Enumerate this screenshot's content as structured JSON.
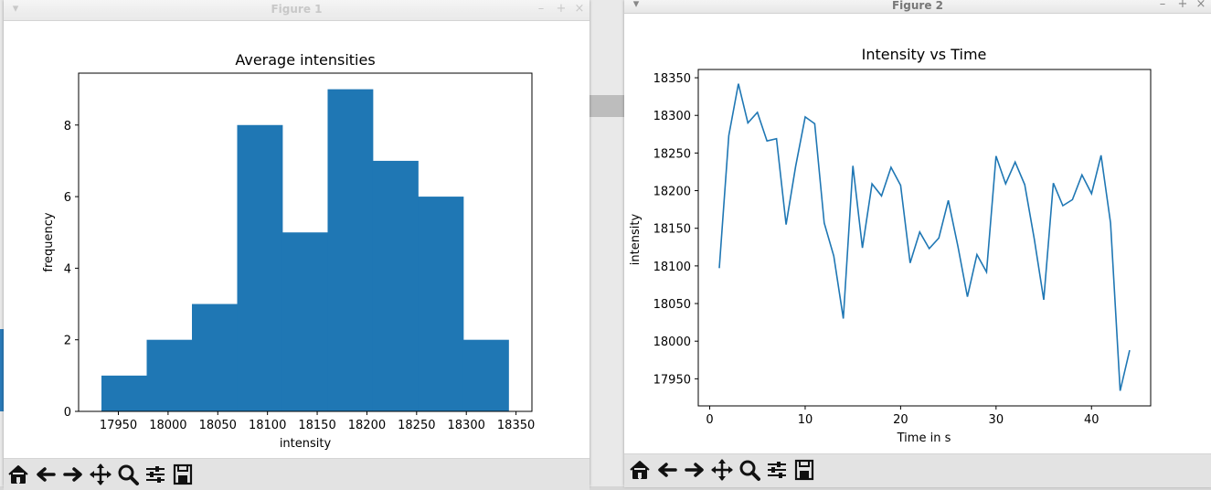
{
  "figure1": {
    "window_title": "Figure 1",
    "chart_data": {
      "type": "bar",
      "title": "Average intensities",
      "xlabel": "intensity",
      "ylabel": "frequency",
      "bin_edges": [
        17933,
        17978.5,
        18024,
        18069.5,
        18115,
        18160.5,
        18206,
        18251.5,
        18297,
        18342.5
      ],
      "values": [
        1,
        2,
        3,
        8,
        5,
        9,
        7,
        6,
        2
      ],
      "xlim": [
        17910,
        18366
      ],
      "ylim": [
        0,
        9.45
      ],
      "xticks": [
        17950,
        18000,
        18050,
        18100,
        18150,
        18200,
        18250,
        18300,
        18350
      ],
      "yticks": [
        0,
        2,
        4,
        6,
        8
      ],
      "color": "#1f77b4"
    }
  },
  "figure2": {
    "window_title": "Figure 2",
    "chart_data": {
      "type": "line",
      "title": "Intensity vs Time",
      "xlabel": "Time in s",
      "ylabel": "intensity",
      "x": [
        1,
        2,
        3,
        4,
        5,
        6,
        7,
        8,
        9,
        10,
        11,
        12,
        13,
        14,
        15,
        16,
        17,
        18,
        19,
        20,
        21,
        22,
        23,
        24,
        25,
        26,
        27,
        28,
        29,
        30,
        31,
        32,
        33,
        34,
        35,
        36,
        37,
        38,
        39,
        40,
        41,
        42,
        43,
        44
      ],
      "y": [
        18097,
        18273,
        18342,
        18290,
        18304,
        18266,
        18269,
        18155,
        18232,
        18298,
        18289,
        18157,
        18113,
        18030,
        18233,
        18124,
        18209,
        18193,
        18231,
        18207,
        18104,
        18145,
        18123,
        18137,
        18187,
        18126,
        18059,
        18115,
        18092,
        18246,
        18209,
        18238,
        18208,
        18136,
        18055,
        18210,
        18180,
        18188,
        18221,
        18196,
        18247,
        18157,
        17934,
        17988
      ],
      "xlim": [
        -1.2,
        46.2
      ],
      "ylim": [
        17914,
        18361
      ],
      "xticks": [
        0,
        10,
        20,
        30,
        40
      ],
      "yticks": [
        17950,
        18000,
        18050,
        18100,
        18150,
        18200,
        18250,
        18300,
        18350
      ],
      "color": "#1f77b4"
    }
  },
  "toolbar_icons": [
    "home-icon",
    "back-arrow-icon",
    "forward-arrow-icon",
    "pan-icon",
    "zoom-icon",
    "configure-subplots-icon",
    "save-icon"
  ]
}
